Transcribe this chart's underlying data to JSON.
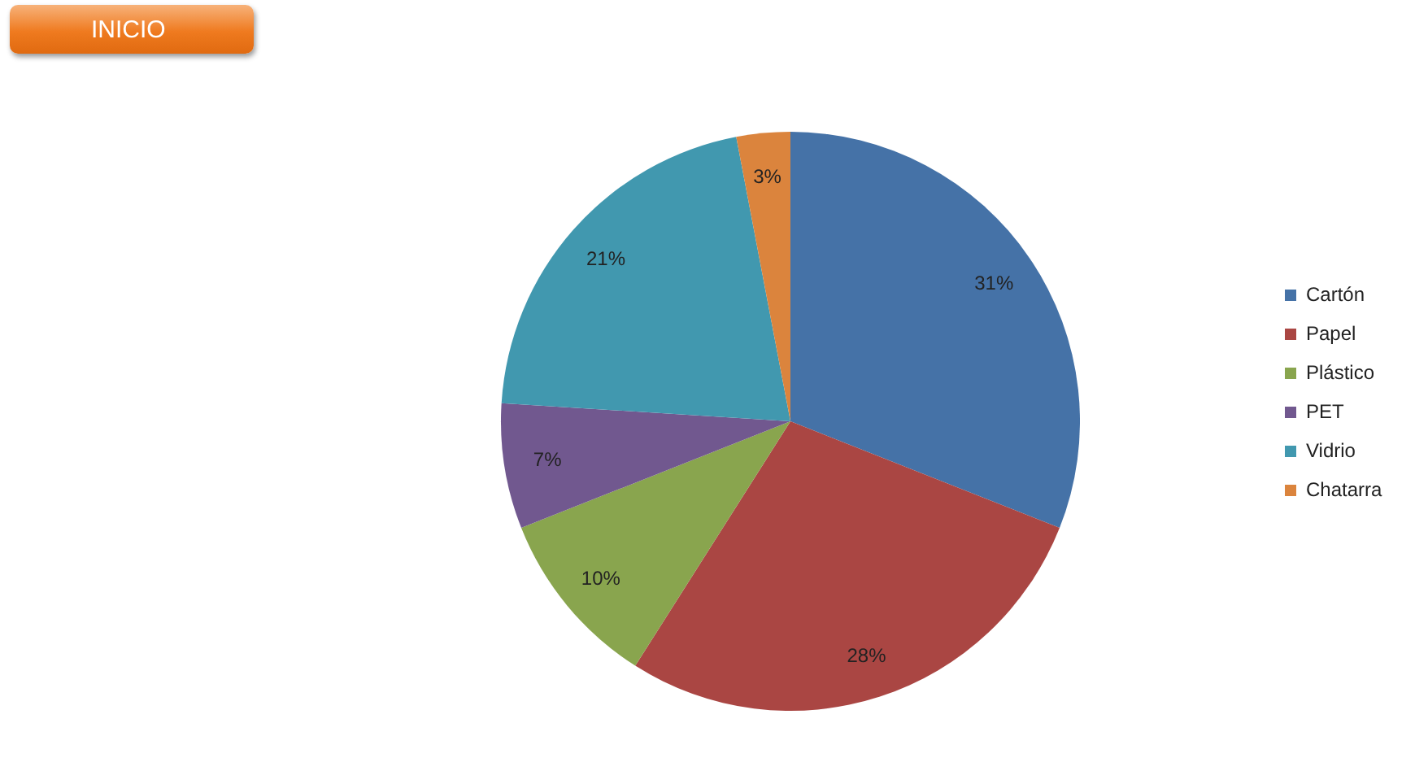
{
  "chart_data": {
    "type": "pie",
    "categories": [
      "Cartón",
      "Papel",
      "Plástico",
      "PET",
      "Vidrio",
      "Chatarra"
    ],
    "values": [
      31,
      28,
      10,
      7,
      21,
      3
    ],
    "colors": [
      "#4572a7",
      "#aa4643",
      "#89a54e",
      "#71588f",
      "#4198af",
      "#db843d"
    ],
    "value_labels": [
      "31%",
      "28%",
      "10%",
      "7%",
      "21%",
      "3%"
    ],
    "legend": "right",
    "annotations": [
      "INICIO"
    ]
  }
}
